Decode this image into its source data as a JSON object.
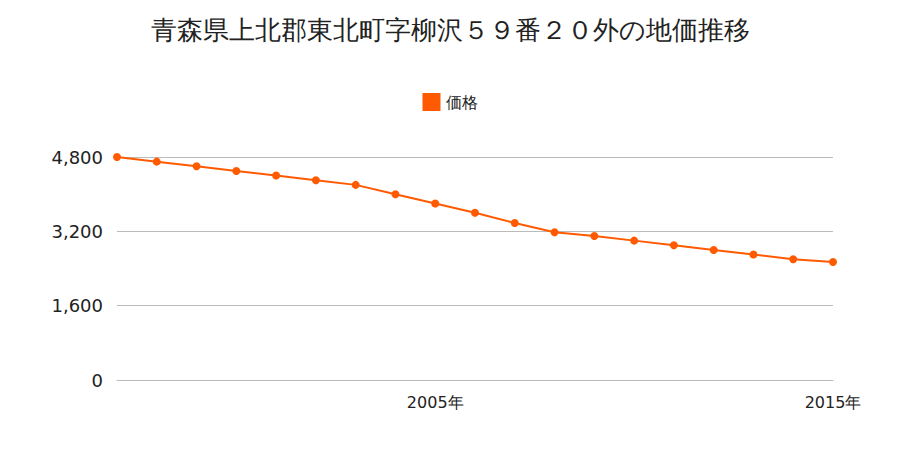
{
  "chart_data": {
    "type": "line",
    "title": "青森県上北郡東北町字柳沢５９番２０外の地価推移",
    "categories": [
      null,
      null,
      null,
      null,
      null,
      null,
      null,
      null,
      "2005年",
      null,
      null,
      null,
      null,
      null,
      null,
      null,
      null,
      null,
      "2015年"
    ],
    "series": [
      {
        "name": "価格",
        "color": "#ff5a00",
        "marker": "circle",
        "values": [
          4800,
          4700,
          4600,
          4500,
          4400,
          4300,
          4200,
          4000,
          3800,
          3600,
          3380,
          3180,
          3100,
          3000,
          2900,
          2800,
          2700,
          2600,
          2540
        ]
      }
    ],
    "ylim": [
      0,
      4800
    ],
    "yticks": [
      0,
      {
        "value": 1600,
        "label": "1,600"
      },
      {
        "value": 3200,
        "label": "3,200"
      },
      {
        "value": 4800,
        "label": "4,800"
      }
    ],
    "grid": true,
    "legend": "top"
  }
}
